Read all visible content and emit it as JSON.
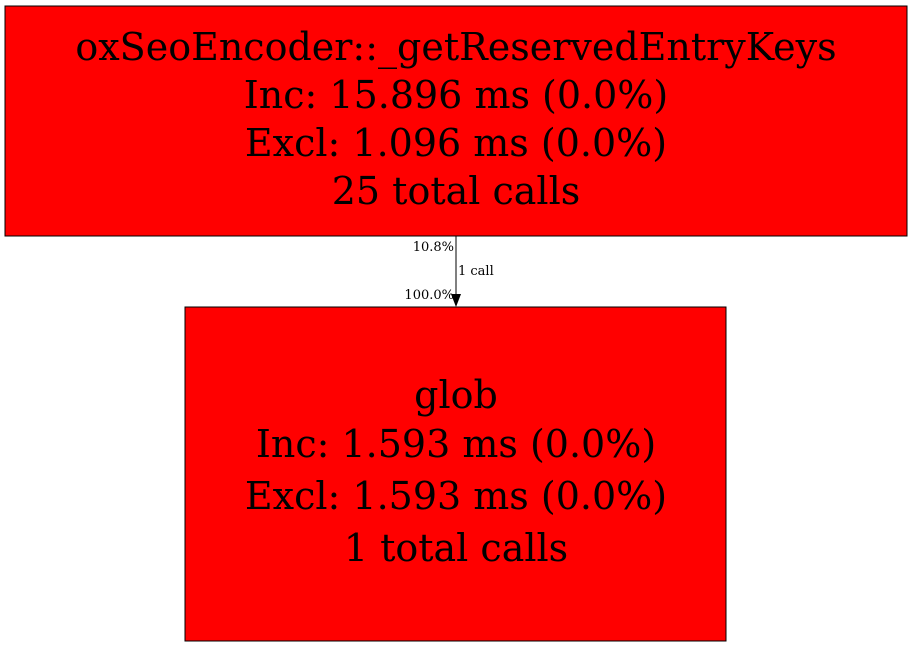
{
  "nodes": [
    {
      "name": "oxSeoEncoder::_getReservedEntryKeys",
      "inc": "Inc: 15.896 ms (0.0%)",
      "excl": "Excl: 1.096 ms (0.0%)",
      "calls": "25 total calls",
      "fill": "#ff0000"
    },
    {
      "name": "glob",
      "inc": "Inc: 1.593 ms (0.0%)",
      "excl": "Excl: 1.593 ms (0.0%)",
      "calls": "1 total calls",
      "fill": "#ff0000"
    }
  ],
  "edges": [
    {
      "from": "oxSeoEncoder::_getReservedEntryKeys",
      "to": "glob",
      "tail_label": "10.8%",
      "label": "1 call",
      "head_label": "100.0%"
    }
  ]
}
